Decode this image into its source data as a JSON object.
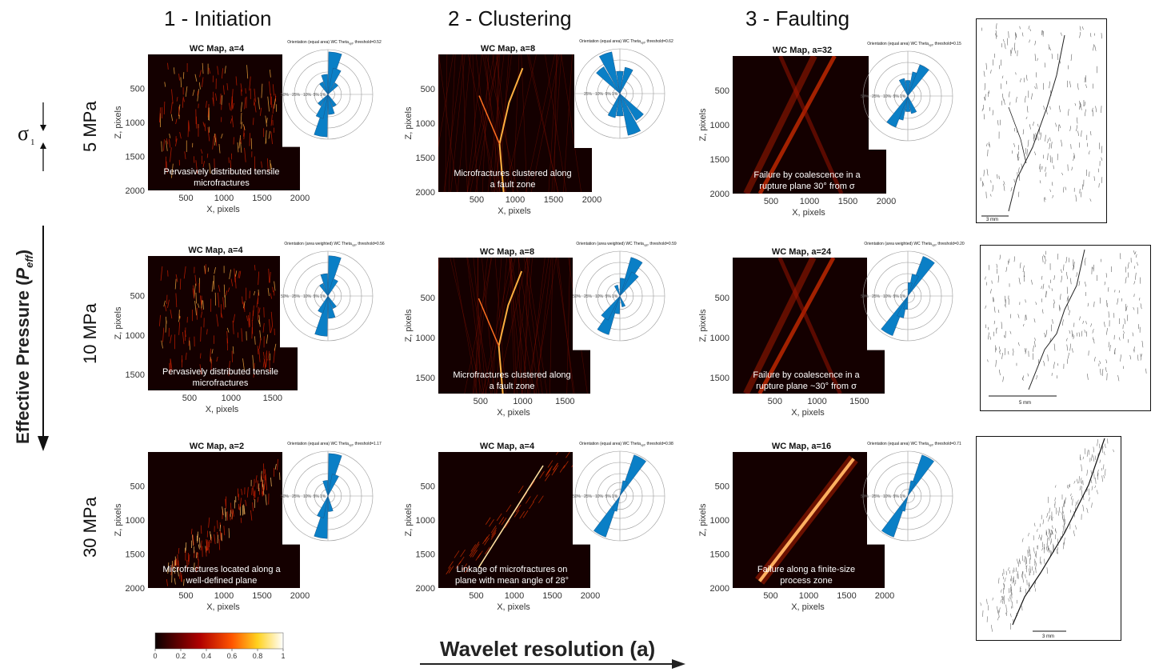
{
  "columns": [
    {
      "title": "1 - Initiation"
    },
    {
      "title": "2 - Clustering"
    },
    {
      "title": "3 - Faulting"
    }
  ],
  "rows": [
    {
      "label": "5 MPa"
    },
    {
      "label": "10 MPa"
    },
    {
      "label": "30 MPa"
    }
  ],
  "side": {
    "sigma": "σ",
    "sigma_sub": "1",
    "effective_pressure": "Effective Pressure (",
    "p": "P",
    "p_sub": "eff",
    "close": ")"
  },
  "bottom": {
    "wavelet_label": "Wavelet resolution (",
    "wavelet_a": "a",
    "wavelet_close": ")"
  },
  "colorbar": {
    "ticks": [
      "0",
      "0.2",
      "0.4",
      "0.6",
      "0.8",
      "1"
    ],
    "range": [
      0,
      1
    ]
  },
  "axes": {
    "xlabel": "X, pixels",
    "ylabel": "Z, pixels"
  },
  "panels": [
    {
      "title": "WC Map, a=4",
      "caption1": "Pervasively distributed tensile",
      "caption2": "microfractures",
      "rose_title": "Orientation (equal area) WC Theta",
      "rose_sub": "opt",
      "rose_thr": ", threshold=0.52",
      "xticks": [
        "500",
        "1000",
        "1500",
        "2000"
      ],
      "yticks": [
        "500",
        "1000",
        "1500",
        "2000"
      ],
      "rings": [
        "50%",
        "25%",
        "10%",
        "5%",
        "1%"
      ]
    },
    {
      "title": "WC Map, a=8",
      "caption1": "Microfractures clustered along",
      "caption2": "a fault zone",
      "rose_title": "Orientation (equal area) WC Theta",
      "rose_sub": "opt",
      "rose_thr": ", threshold=0.62",
      "xticks": [
        "500",
        "1000",
        "1500",
        "2000"
      ],
      "yticks": [
        "500",
        "1000",
        "1500",
        "2000"
      ],
      "rings": [
        "25%",
        "10%",
        "5%",
        "1%"
      ]
    },
    {
      "title": "WC Map, a=32",
      "caption1": "Failure by coalescence in a",
      "caption2": "rupture plane 30° from σ",
      "rose_title": "Orientation (equal area) WC Theta",
      "rose_sub": "opt",
      "rose_thr": ", threshold=0.15",
      "xticks": [
        "500",
        "1000",
        "1500",
        "2000"
      ],
      "yticks": [
        "500",
        "1000",
        "1500",
        "2000"
      ],
      "rings": [
        "50%",
        "25%",
        "10%",
        "5%",
        "1%"
      ]
    },
    {
      "title": "WC Map, a=4",
      "caption1": "Pervasively distributed tensile",
      "caption2": "microfractures",
      "rose_title": "Orientation (area weighted) WC Theta",
      "rose_sub": "opt",
      "rose_thr": ", threshold=0.56",
      "xticks": [
        "500",
        "1000",
        "1500"
      ],
      "yticks": [
        "500",
        "1000",
        "1500"
      ],
      "rings": [
        "50%",
        "25%",
        "10%",
        "5%",
        "1%"
      ]
    },
    {
      "title": "WC Map, a=8",
      "caption1": "Microfractures clustered along",
      "caption2": "a fault zone",
      "rose_title": "Orientation (area weighted) WC Theta",
      "rose_sub": "opt",
      "rose_thr": ", threshold=0.59",
      "xticks": [
        "500",
        "1000",
        "1500"
      ],
      "yticks": [
        "500",
        "1000",
        "1500"
      ],
      "rings": [
        "50%",
        "25%",
        "10%",
        "5%",
        "1%"
      ]
    },
    {
      "title": "WC Map, a=24",
      "caption1": "Failure by coalescence in a",
      "caption2": "rupture plane ~30° from σ",
      "rose_title": "Orientation (area weighted) WC Theta",
      "rose_sub": "opt",
      "rose_thr": ", threshold=0.20",
      "xticks": [
        "500",
        "1000",
        "1500"
      ],
      "yticks": [
        "500",
        "1000",
        "1500"
      ],
      "rings": [
        "50%",
        "25%",
        "10%",
        "5%",
        "1%"
      ]
    },
    {
      "title": "WC Map, a=2",
      "caption1": "Microfractures located along a",
      "caption2": "well-defined plane",
      "rose_title": "Orientation (equal area) WC Theta",
      "rose_sub": "opt",
      "rose_thr": ", threshold=1.17",
      "xticks": [
        "500",
        "1000",
        "1500",
        "2000"
      ],
      "yticks": [
        "500",
        "1000",
        "1500",
        "2000"
      ],
      "rings": [
        "50%",
        "25%",
        "10%",
        "5%",
        "1%"
      ]
    },
    {
      "title": "WC Map, a=4",
      "caption1": "Linkage of microfractures on",
      "caption2": "plane with mean angle of 28°",
      "rose_title": "Orientation (equal area) WC Theta",
      "rose_sub": "opt",
      "rose_thr": ", threshold=0.98",
      "xticks": [
        "500",
        "1000",
        "1500",
        "2000"
      ],
      "yticks": [
        "500",
        "1000",
        "1500",
        "2000"
      ],
      "rings": [
        "50%",
        "25%",
        "10%",
        "5%",
        "1%"
      ]
    },
    {
      "title": "WC Map, a=16",
      "caption1": "Failure along a finite-size",
      "caption2": "process zone",
      "rose_title": "Orientation (equal area) WC Theta",
      "rose_sub": "opt",
      "rose_thr": ", threshold=0.71",
      "xticks": [
        "500",
        "1000",
        "1500",
        "2000"
      ],
      "yticks": [
        "500",
        "1000",
        "1500",
        "2000"
      ],
      "rings": [
        "50%",
        "25%",
        "10%",
        "5%",
        "1%"
      ]
    }
  ],
  "insets": [
    {
      "scale": "3 mm"
    },
    {
      "scale": "5 mm"
    },
    {
      "scale": "3 mm"
    }
  ],
  "colors": {
    "rose_fill": "#0a7fc6",
    "map_dark": "#140000",
    "map_hot": "#ff3a0a"
  }
}
